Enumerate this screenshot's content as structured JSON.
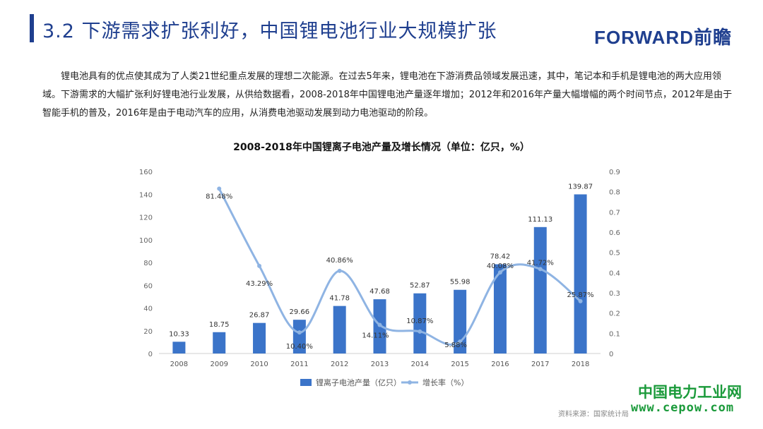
{
  "header": {
    "title": "3.2 下游需求扩张利好，中国锂电池行业大规模扩张",
    "brand": "FORWARD前瞻"
  },
  "intro": {
    "paragraph": "锂电池具有的优点使其成为了人类21世纪重点发展的理想二次能源。在过去5年来，锂电池在下游消费品领域发展迅速，其中，笔记本和手机是锂电池的两大应用领域。下游需求的大幅扩张利好锂电池行业发展，从供给数据看，2008-2018年中国锂电池产量逐年增加；2012年和2016年产量大幅增幅的两个时间节点，2012年是由于智能手机的普及，2016年是由于电动汽车的应用，从消费电池驱动发展到动力电池驱动的阶段。"
  },
  "footer": {
    "source": "资料来源：国家统计局",
    "watermark": "中国电力工业网",
    "watermark_url": "www.cepow.com"
  },
  "colors": {
    "accent": "#1f3f8f",
    "bar": "#3b74c9",
    "line": "#8fb4e3",
    "watermark": "#1a9a3a"
  },
  "chart_data": {
    "type": "bar",
    "title": "2008-2018年中国锂离子电池产量及增长情况（单位：亿只，%）",
    "categories": [
      "2008",
      "2009",
      "2010",
      "2011",
      "2012",
      "2013",
      "2014",
      "2015",
      "2016",
      "2017",
      "2018"
    ],
    "series": [
      {
        "name": "锂离子电池产量（亿只）",
        "type": "bar",
        "axis": "left",
        "values": [
          10.33,
          18.75,
          26.87,
          29.66,
          41.78,
          47.68,
          52.87,
          55.98,
          78.42,
          111.13,
          139.87
        ],
        "labels": [
          "10.33",
          "18.75",
          "26.87",
          "29.66",
          "41.78",
          "47.68",
          "52.87",
          "55.98",
          "78.42",
          "111.13",
          "139.87"
        ]
      },
      {
        "name": "增长率（%）",
        "type": "line",
        "axis": "right",
        "values": [
          null,
          0.8148,
          0.4329,
          0.104,
          0.4086,
          0.1411,
          0.1087,
          0.0588,
          0.4008,
          0.4172,
          0.2587
        ],
        "labels": [
          "",
          "81.48%",
          "43.29%",
          "10.40%",
          "40.86%",
          "14.11%",
          "10.87%",
          "5.88%",
          "40.08%",
          "41.72%",
          "25.87%"
        ]
      }
    ],
    "yleft": {
      "ticks": [
        "0",
        "20",
        "40",
        "60",
        "80",
        "100",
        "120",
        "140",
        "160"
      ],
      "lim": [
        0,
        160
      ]
    },
    "yright": {
      "ticks": [
        "0",
        "0.1",
        "0.2",
        "0.3",
        "0.4",
        "0.5",
        "0.6",
        "0.7",
        "0.8",
        "0.9"
      ],
      "lim": [
        0,
        0.9
      ]
    },
    "grid": false,
    "legend_position": "bottom"
  }
}
